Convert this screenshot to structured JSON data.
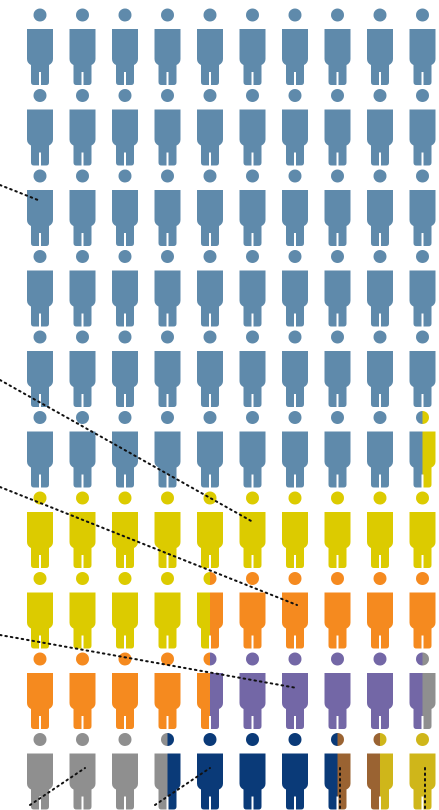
{
  "chart_data": {
    "type": "pictogram",
    "values": [
      59.5,
      15,
      10,
      5,
      4,
      4,
      1,
      1.5
    ],
    "colors": [
      "#5f8aab",
      "#dccb00",
      "#f58a1f",
      "#7367a6",
      "#8f8f8f",
      "#0a3a78",
      "#9a6332",
      "#cfb61a"
    ]
  }
}
